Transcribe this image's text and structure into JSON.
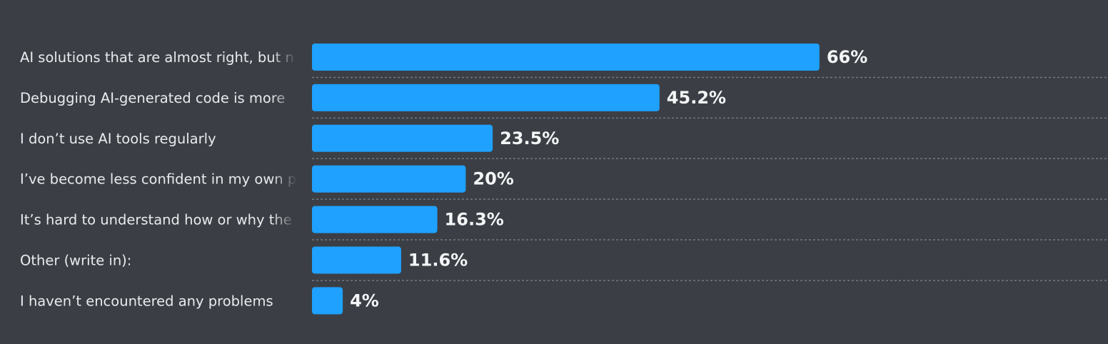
{
  "colors": {
    "background": "#3b3f45",
    "bar": "#1ea1ff",
    "label_text": "#e9ebed",
    "value_text": "#f4f5f6",
    "divider": "#727a84"
  },
  "chart_data": {
    "type": "bar",
    "orientation": "horizontal",
    "categories": [
      "AI solutions that are almost right, but n",
      "Debugging AI-generated code is more",
      "I don’t use AI tools regularly",
      "I’ve become less confident in my own p",
      "It’s hard to understand how or why the",
      "Other (write in):",
      "I haven’t encountered any problems"
    ],
    "values": [
      66,
      45.2,
      23.5,
      20,
      16.3,
      11.6,
      4
    ],
    "value_labels": [
      "66%",
      "45.2%",
      "23.5%",
      "20%",
      "16.3%",
      "11.6%",
      "4%"
    ],
    "unit": "%",
    "xlim": [
      0,
      100
    ],
    "grid": false,
    "legend": "none"
  }
}
